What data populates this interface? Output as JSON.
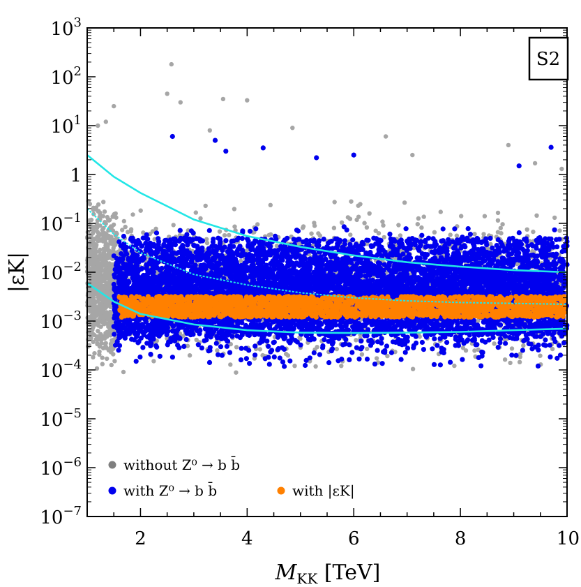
{
  "chart_data": {
    "type": "scatter",
    "panel_label": "S2",
    "xlabel": "M_KK",
    "xlabel_main": "M",
    "xlabel_sub": "KK",
    "xlabel_unit": "[TeV]",
    "ylabel": "|εK|",
    "xlim": [
      1,
      10
    ],
    "ylim": [
      1e-07,
      1000
    ],
    "yscale": "log",
    "grid": false,
    "legend_position": "bottom-left",
    "x_ticks": [
      "2",
      "4",
      "6",
      "8",
      "10"
    ],
    "y_ticks": [
      {
        "base": "10",
        "exp": "3"
      },
      {
        "base": "10",
        "exp": "2"
      },
      {
        "base": "10",
        "exp": "1"
      },
      {
        "base": "1",
        "exp": ""
      },
      {
        "base": "10",
        "exp": "−1"
      },
      {
        "base": "10",
        "exp": "−2"
      },
      {
        "base": "10",
        "exp": "−3"
      },
      {
        "base": "10",
        "exp": "−4"
      },
      {
        "base": "10",
        "exp": "−5"
      },
      {
        "base": "10",
        "exp": "−6"
      },
      {
        "base": "10",
        "exp": "−7"
      }
    ],
    "legend": [
      {
        "label": "without Z⁰ → b b̄",
        "color": "#7f7f7f"
      },
      {
        "label": "with Z⁰ → b b̄",
        "color": "#0000ee"
      },
      {
        "label": "with |εK|",
        "color": "#ff8000"
      }
    ],
    "series": [
      {
        "name": "without Z⁰ → b b̄",
        "color": "#a6a6a6",
        "band": {
          "x_min": 1.0,
          "x_max": 10.0,
          "log_y_center": -2.3,
          "log_y_spread": 1.1
        },
        "outliers": [
          [
            2.58,
            180
          ],
          [
            2.5,
            45
          ],
          [
            2.75,
            30
          ],
          [
            3.55,
            35
          ],
          [
            4.0,
            33
          ],
          [
            1.5,
            25
          ],
          [
            1.35,
            12
          ],
          [
            1.2,
            10
          ],
          [
            3.3,
            8
          ],
          [
            4.85,
            9
          ],
          [
            6.6,
            6
          ],
          [
            8.9,
            4
          ],
          [
            7.1,
            2.5
          ],
          [
            9.9,
            1.3
          ],
          [
            9.4,
            1.7
          ]
        ]
      },
      {
        "name": "with Z⁰ → b b̄",
        "color": "#0000ee",
        "band": {
          "x_min": 1.5,
          "x_max": 10.0,
          "log_y_center": -2.5,
          "log_y_spread": 0.9
        },
        "outliers": [
          [
            2.6,
            6
          ],
          [
            3.4,
            5
          ],
          [
            3.6,
            3
          ],
          [
            4.3,
            3.5
          ],
          [
            6.0,
            2.5
          ],
          [
            9.7,
            3.6
          ],
          [
            9.1,
            1.5
          ],
          [
            5.3,
            2.2
          ]
        ]
      },
      {
        "name": "with |εK|",
        "color": "#ff8000",
        "band": {
          "x_min": 1.6,
          "x_max": 10.0,
          "y_min": 0.0012,
          "y_max": 0.0032
        }
      }
    ],
    "curves": [
      {
        "name": "upper",
        "style": "solid",
        "color": "#22e6e6",
        "x": [
          1.0,
          1.5,
          2.0,
          3.0,
          4.0,
          5.0,
          6.0,
          7.0,
          8.0,
          9.0,
          10.0
        ],
        "y": [
          2.5,
          0.9,
          0.42,
          0.12,
          0.055,
          0.033,
          0.022,
          0.016,
          0.013,
          0.011,
          0.01
        ]
      },
      {
        "name": "middle",
        "style": "dotted",
        "color": "#22e6e6",
        "x": [
          1.0,
          1.5,
          2.0,
          3.0,
          4.0,
          5.0,
          6.0,
          7.0,
          8.0,
          9.0,
          10.0
        ],
        "y": [
          0.2,
          0.06,
          0.025,
          0.009,
          0.0055,
          0.0038,
          0.003,
          0.0026,
          0.0024,
          0.0023,
          0.0022
        ]
      },
      {
        "name": "lower",
        "style": "solid",
        "color": "#22e6e6",
        "x": [
          1.0,
          1.5,
          2.0,
          3.0,
          4.0,
          5.0,
          6.0,
          7.0,
          8.0,
          9.0,
          10.0
        ],
        "y": [
          0.006,
          0.0025,
          0.0014,
          0.00085,
          0.00065,
          0.00058,
          0.00057,
          0.00058,
          0.0006,
          0.00065,
          0.0007
        ]
      }
    ]
  }
}
